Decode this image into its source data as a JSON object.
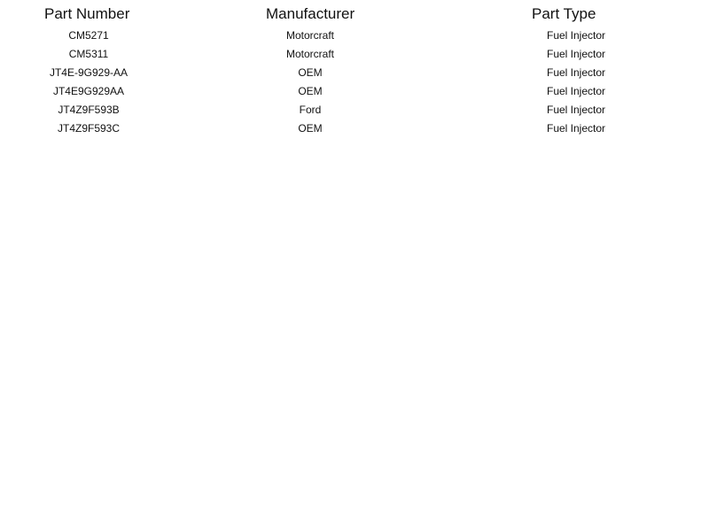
{
  "table": {
    "headers": [
      "Part Number",
      "Manufacturer",
      "Part Type"
    ],
    "rows": [
      [
        "CM5271",
        "Motorcraft",
        "Fuel Injector"
      ],
      [
        "CM5311",
        "Motorcraft",
        "Fuel Injector"
      ],
      [
        "JT4E-9G929-AA",
        "OEM",
        "Fuel Injector"
      ],
      [
        "JT4E9G929AA",
        "OEM",
        "Fuel Injector"
      ],
      [
        "JT4Z9F593B",
        "Ford",
        "Fuel Injector"
      ],
      [
        "JT4Z9F593C",
        "OEM",
        "Fuel Injector"
      ]
    ]
  }
}
